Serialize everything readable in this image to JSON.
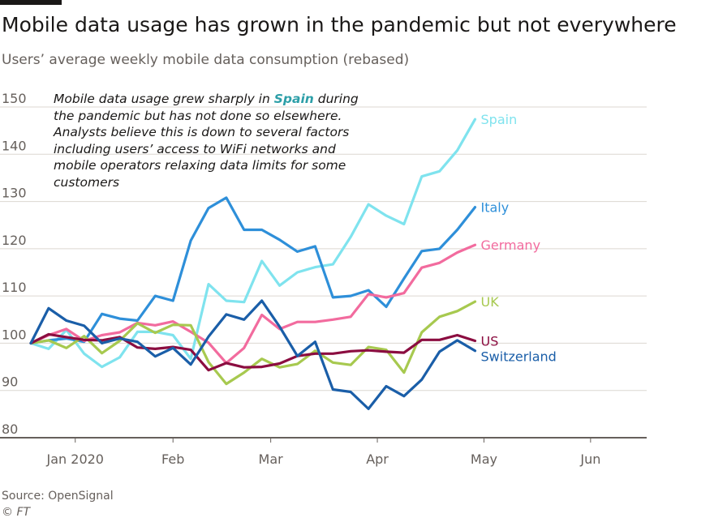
{
  "header": {
    "title": "Mobile data usage has grown in the pandemic but not everywhere",
    "subtitle": "Users’ average weekly mobile data consumption (rebased)"
  },
  "annotation": {
    "pre": "Mobile data usage grew sharply in ",
    "highlight": "Spain",
    "post": " during the pandemic but has not done so elsewhere. Analysts believe this is down to several factors including users’ access to WiFi networks and mobile operators relaxing data limits for some customers"
  },
  "footer": {
    "source": "Source: OpenSignal",
    "credit": "© FT"
  },
  "colors": {
    "grid": "#dcd7d1",
    "axis": "#66605c",
    "highlight": "#2d9fa8"
  },
  "chart_data": {
    "type": "line",
    "title": "Mobile data usage has grown in the pandemic but not everywhere",
    "subtitle": "Users’ average weekly mobile data consumption (rebased)",
    "xlabel": "",
    "ylabel": "",
    "ylim": [
      80,
      150
    ],
    "yticks": [
      80,
      90,
      100,
      110,
      120,
      130,
      140,
      150
    ],
    "grid": true,
    "x_tick_labels": [
      "Jan 2020",
      "Feb",
      "Mar",
      "Apr",
      "May",
      "Jun"
    ],
    "x_tick_week_index": [
      2.5,
      8,
      13.5,
      19.5,
      25.5,
      31.5
    ],
    "weeks": 35,
    "series": [
      {
        "name": "Spain",
        "color": "#7fe3ee",
        "values": [
          100,
          98.8,
          102.8,
          97.8,
          95,
          97,
          102.4,
          102.4,
          101.7,
          96.7,
          112.5,
          109,
          108.7,
          117.4,
          112.2,
          115,
          116.1,
          116.7,
          122.5,
          129.4,
          127,
          125.2,
          135.3,
          136.4,
          140.8,
          147.4
        ]
      },
      {
        "name": "Italy",
        "color": "#2e8fd9",
        "values": [
          100,
          100.6,
          101,
          100.3,
          106.2,
          105.2,
          104.8,
          110,
          109,
          121.7,
          128.6,
          130.8,
          124,
          124,
          121.9,
          119.4,
          120.5,
          109.7,
          110,
          111.2,
          107.7,
          113.7,
          119.5,
          120,
          124,
          128.8
        ]
      },
      {
        "name": "Germany",
        "color": "#f26b9e",
        "values": [
          100,
          101.7,
          103,
          100.5,
          101.7,
          102.3,
          104.3,
          103.8,
          104.6,
          102.4,
          100.1,
          95.8,
          99,
          106,
          103,
          104.5,
          104.5,
          105,
          105.6,
          110.4,
          109.7,
          110.6,
          116,
          117,
          119.2,
          120.8
        ]
      },
      {
        "name": "UK",
        "color": "#a7c94f",
        "values": [
          100,
          100.6,
          99,
          101.5,
          97.9,
          100.5,
          104.2,
          102.2,
          103.9,
          103.8,
          96,
          91.4,
          93.8,
          96.7,
          94.9,
          95.6,
          98.4,
          95.9,
          95.4,
          99.2,
          98.6,
          93.8,
          102.3,
          105.6,
          106.8,
          108.8
        ]
      },
      {
        "name": "US",
        "color": "#8b0d40",
        "values": [
          100,
          101.9,
          101.3,
          100.7,
          100.6,
          101.3,
          99.1,
          98.8,
          99.2,
          98.6,
          94.3,
          95.8,
          94.9,
          95,
          95.7,
          97.3,
          97.8,
          97.8,
          98.3,
          98.5,
          98.2,
          98,
          100.7,
          100.7,
          101.7,
          100.5
        ]
      },
      {
        "name": "Switzerland",
        "color": "#1a5ea8",
        "values": [
          100,
          107.4,
          104.8,
          103.7,
          100,
          101,
          100.3,
          97.2,
          99,
          95.5,
          101.4,
          106.1,
          105,
          109,
          103.5,
          97.3,
          100.3,
          90.2,
          89.7,
          86.1,
          90.9,
          88.8,
          92.3,
          98.2,
          100.6,
          98.4
        ]
      }
    ]
  }
}
